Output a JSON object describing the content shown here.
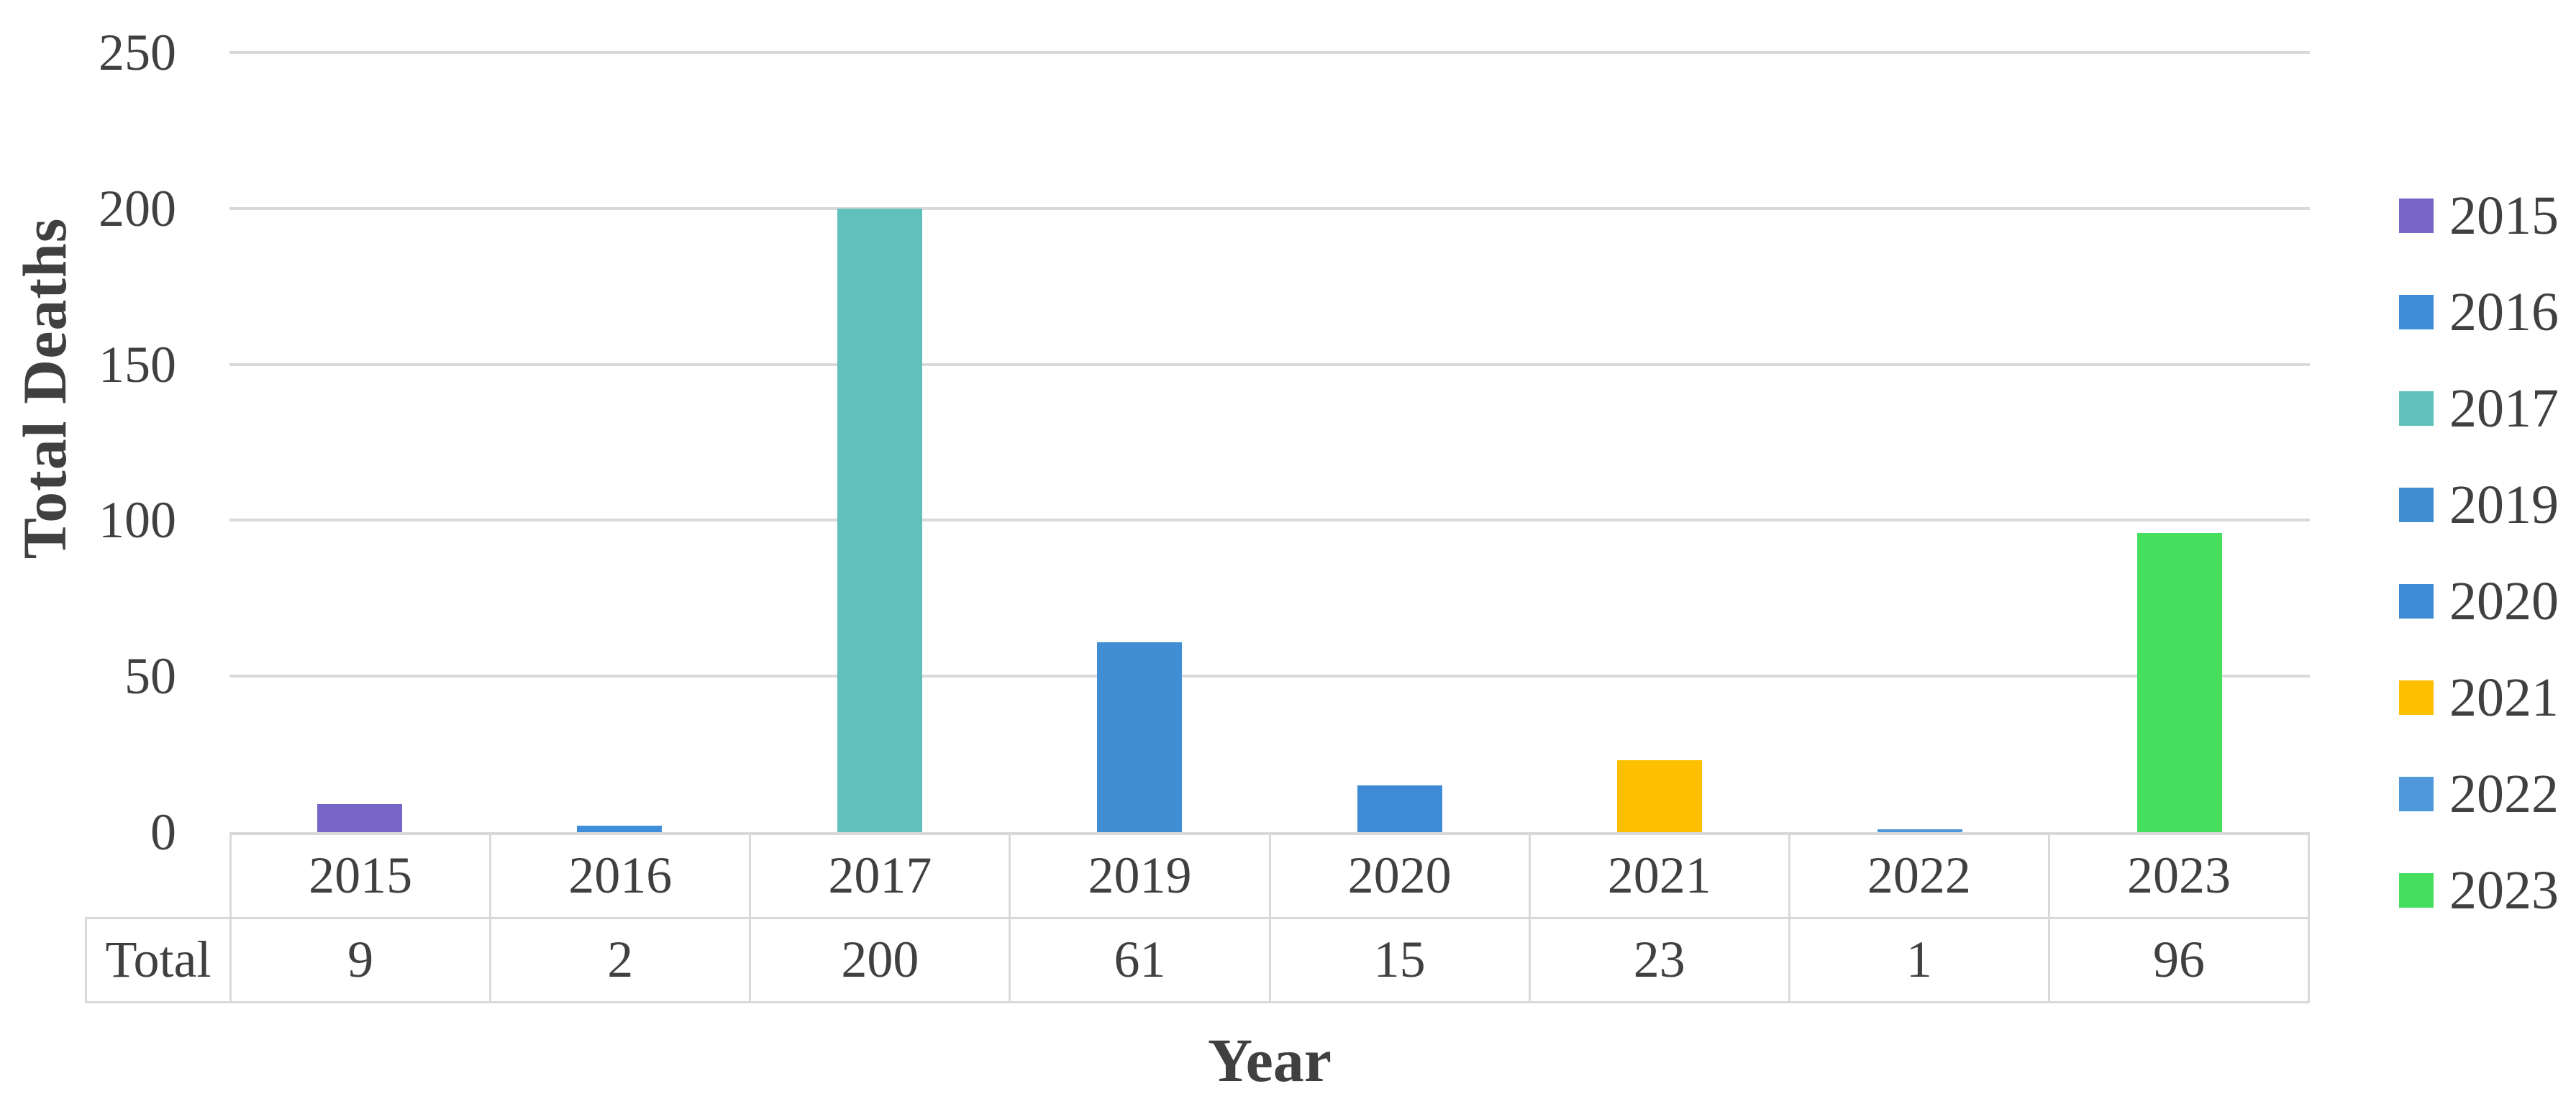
{
  "chart_data": {
    "type": "bar",
    "title": "",
    "xlabel": "Year",
    "ylabel": "Total Deaths",
    "categories": [
      "2015",
      "2016",
      "2017",
      "2019",
      "2020",
      "2021",
      "2022",
      "2023"
    ],
    "values": [
      9,
      2,
      200,
      61,
      15,
      23,
      1,
      96
    ],
    "colors": [
      "#7765C8",
      "#3E8EDA",
      "#5FC0BC",
      "#428ED4",
      "#3E8BD5",
      "#FEBF00",
      "#4E97DA",
      "#45DF5D"
    ],
    "ylim": [
      0,
      250
    ],
    "yticks": [
      0,
      50,
      100,
      150,
      200,
      250
    ],
    "grid": true,
    "legend_position": "right",
    "legend_labels": [
      "2015",
      "2016",
      "2017",
      "2019",
      "2020",
      "2021",
      "2022",
      "2023"
    ],
    "data_table": {
      "row_label": "Total",
      "row_values": [
        9,
        2,
        200,
        61,
        15,
        23,
        1,
        96
      ]
    },
    "style": {
      "gridline_color": "#D9D9D9",
      "text_color": "#404040"
    }
  }
}
